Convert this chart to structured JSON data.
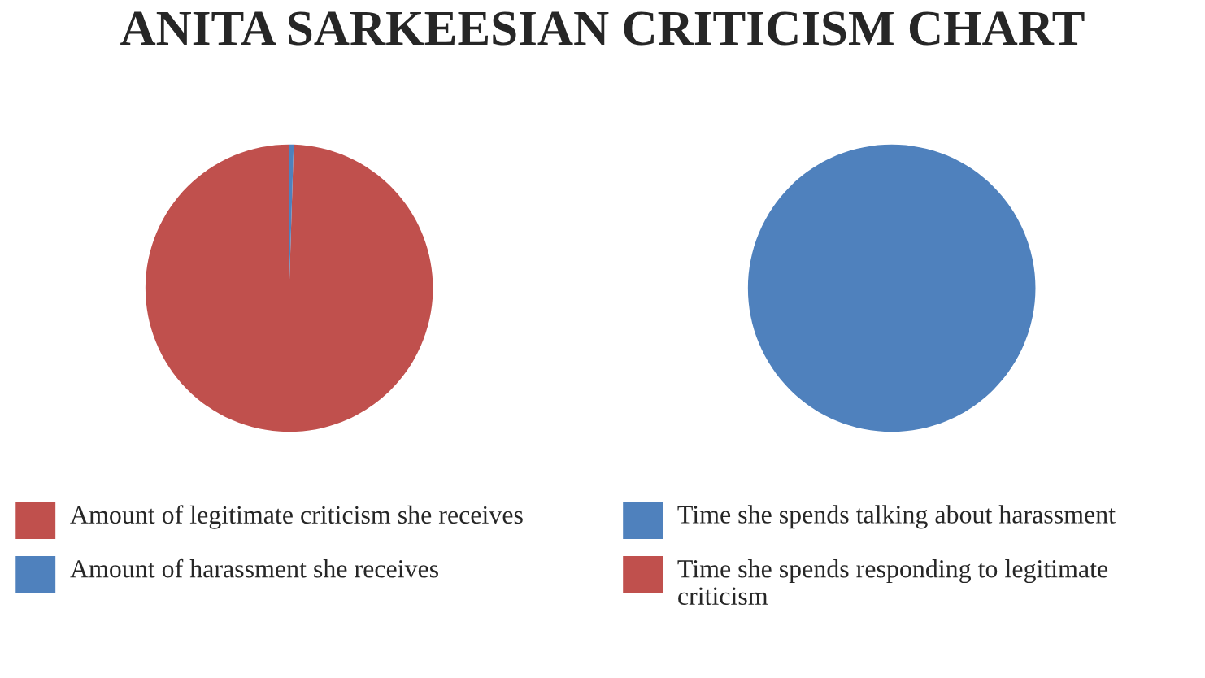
{
  "chart_data": [
    {
      "type": "pie",
      "title": "ANITA SARKEESIAN CRITICISM CHART",
      "categories": [
        "Amount of legitimate criticism she receives",
        "Amount of harassment she receives"
      ],
      "values": [
        99.5,
        0.5
      ],
      "colors": [
        "#c0504d",
        "#4f81bd"
      ],
      "legend": "bottom"
    },
    {
      "type": "pie",
      "categories": [
        "Time she spends talking about harassment",
        "Time she spends responding to legitimate criticism"
      ],
      "values": [
        100,
        0
      ],
      "colors": [
        "#4f81bd",
        "#c0504d"
      ],
      "legend": "bottom"
    }
  ]
}
